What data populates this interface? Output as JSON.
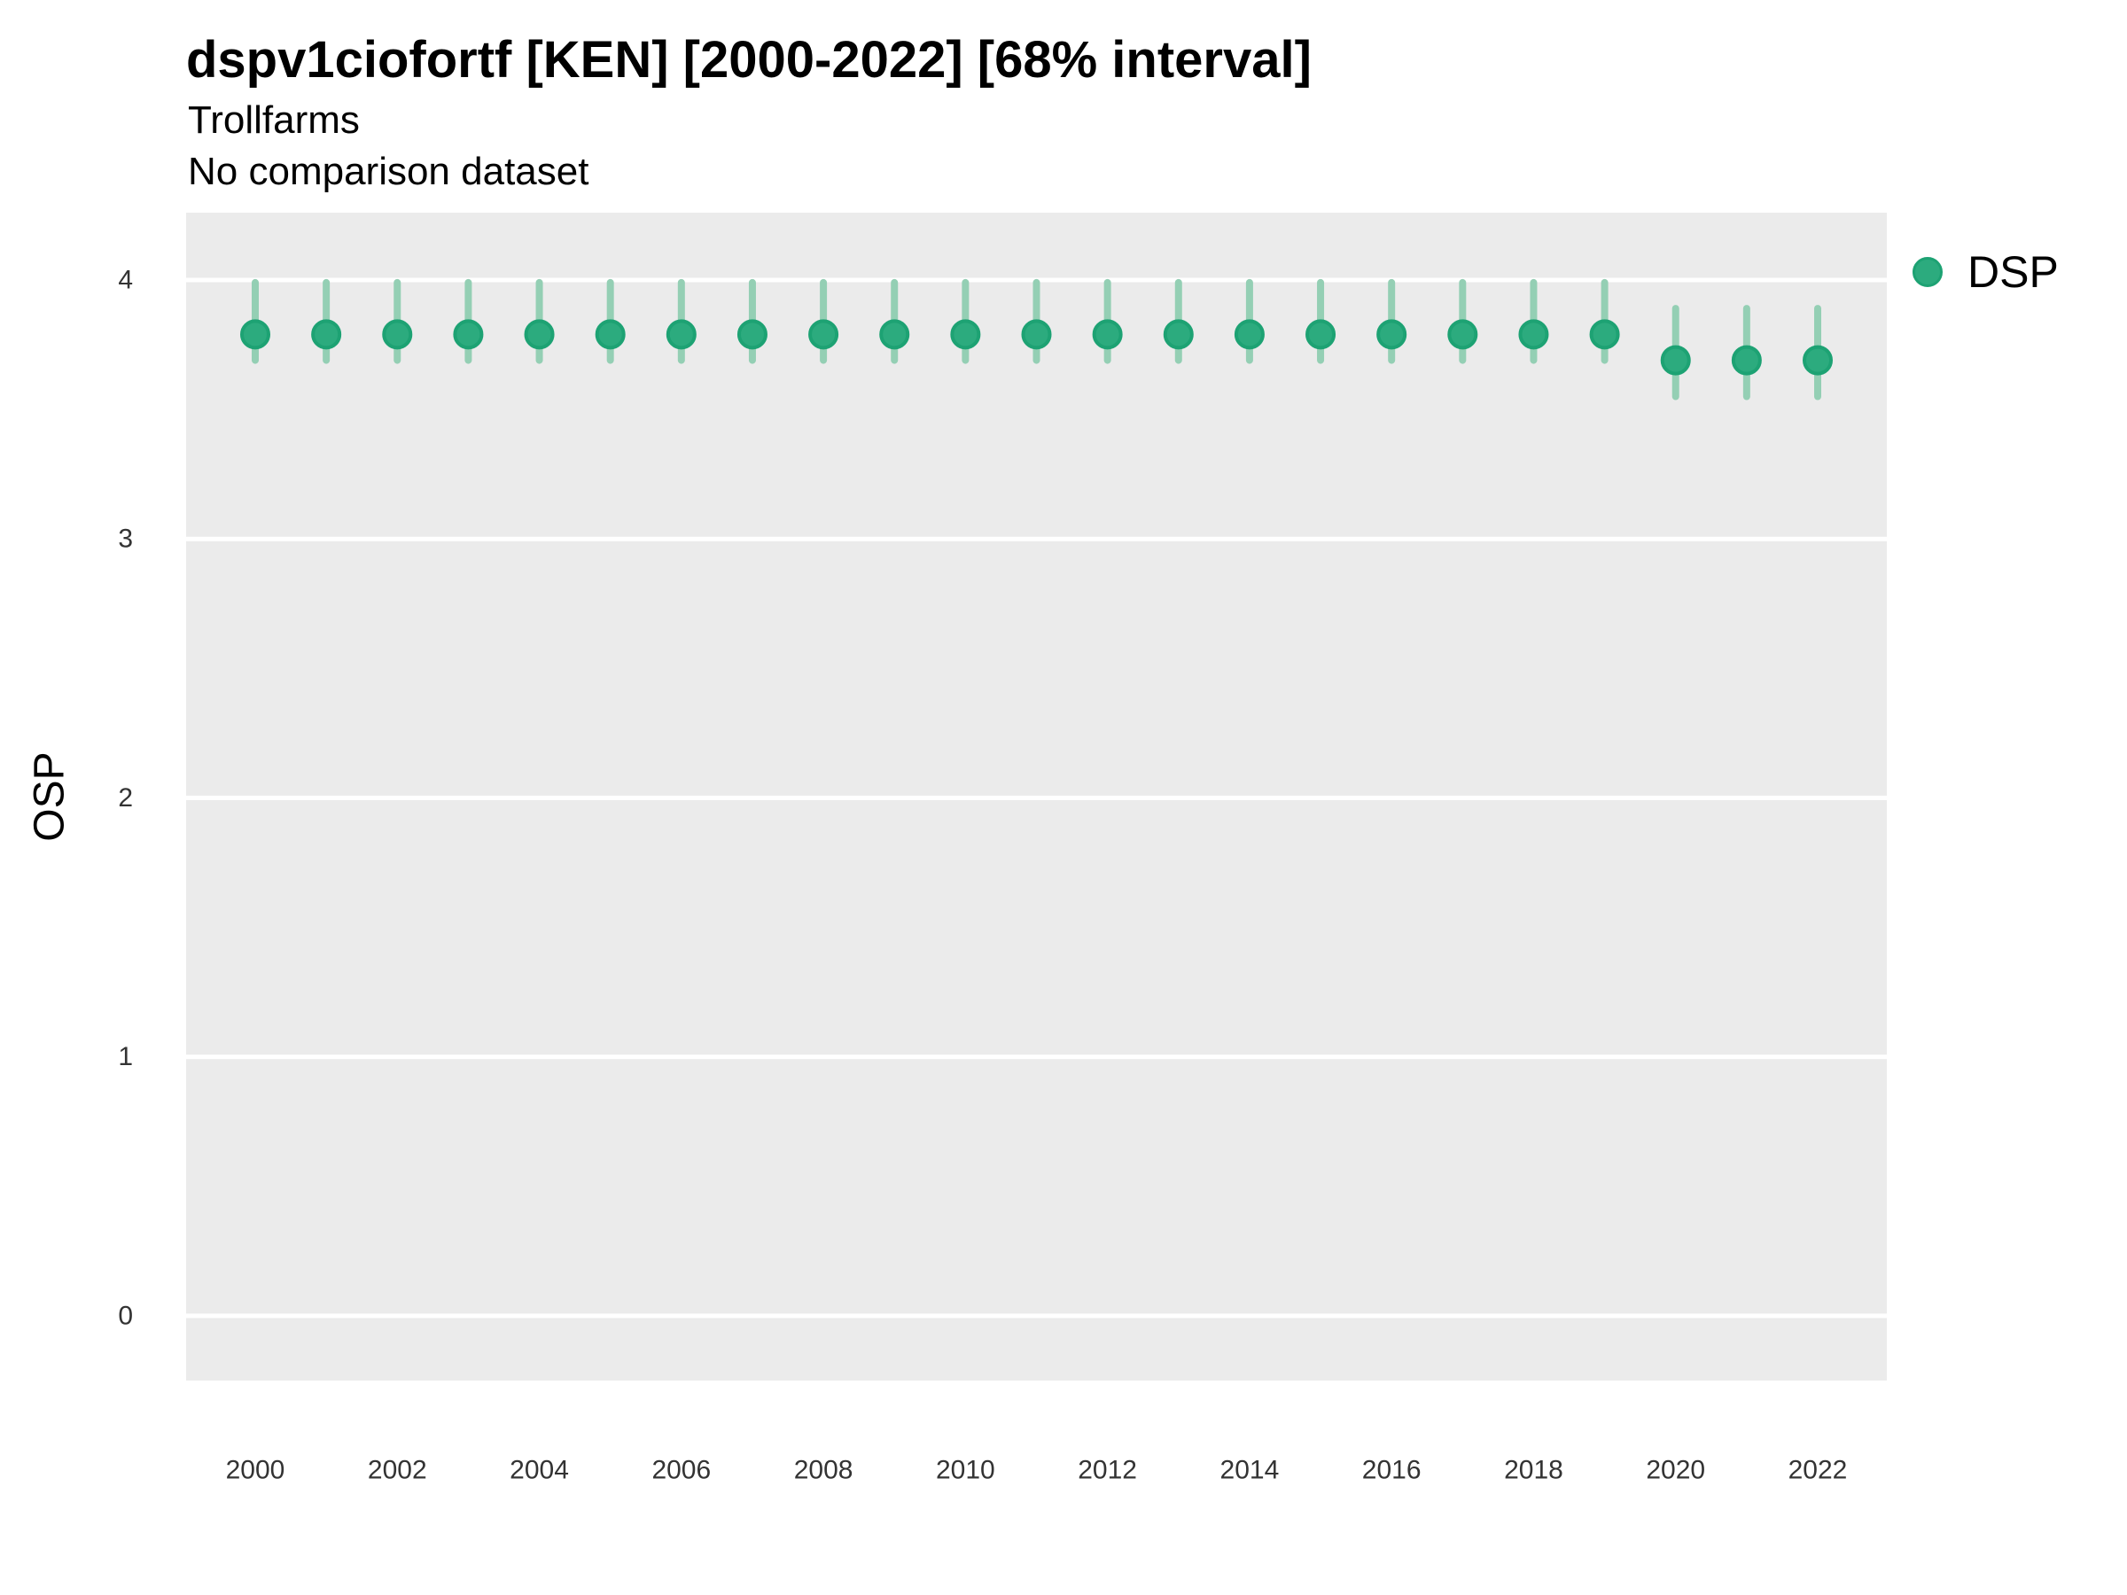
{
  "title": "dspv1ciofortf [KEN] [2000-2022] [68% interval]",
  "subtitle": "Trollfarms",
  "comparison_note": "No comparison dataset",
  "legend": {
    "items": [
      {
        "label": "DSP",
        "symbol": "filled-circle"
      }
    ]
  },
  "axes": {
    "y_label": "OSP",
    "y_ticks": [
      0,
      1,
      2,
      3,
      4
    ],
    "x_ticks": [
      2000,
      2002,
      2004,
      2006,
      2008,
      2010,
      2012,
      2014,
      2016,
      2018,
      2020,
      2022
    ]
  },
  "colors": {
    "point_fill": "#2cab7e",
    "point_ring": "#1da273",
    "interval_bar": "#94cfb4",
    "panel_bg": "#ebebeb",
    "gridline": "#ffffff",
    "tick_text": "#333333",
    "axis_title_text": "#000000"
  },
  "chart_data": {
    "type": "scatter",
    "subtype": "pointrange",
    "title": "dspv1ciofortf [KEN] [2000-2022] [68% interval]",
    "subtitle": "Trollfarms",
    "note": "No comparison dataset",
    "interval": "68%",
    "xlabel": "",
    "ylabel": "OSP",
    "ylim": [
      -0.25,
      4.26
    ],
    "grid": "horizontal-only",
    "legend_position": "right-top",
    "x": [
      2000,
      2001,
      2002,
      2003,
      2004,
      2005,
      2006,
      2007,
      2008,
      2009,
      2010,
      2011,
      2012,
      2013,
      2014,
      2015,
      2016,
      2017,
      2018,
      2019,
      2020,
      2021,
      2022
    ],
    "series": [
      {
        "name": "DSP",
        "values": [
          3.79,
          3.79,
          3.79,
          3.79,
          3.79,
          3.79,
          3.79,
          3.79,
          3.79,
          3.79,
          3.79,
          3.79,
          3.79,
          3.79,
          3.79,
          3.79,
          3.79,
          3.79,
          3.79,
          3.79,
          3.69,
          3.69,
          3.69
        ],
        "lower": [
          3.69,
          3.69,
          3.69,
          3.69,
          3.69,
          3.69,
          3.69,
          3.69,
          3.69,
          3.69,
          3.69,
          3.69,
          3.69,
          3.69,
          3.69,
          3.69,
          3.69,
          3.69,
          3.69,
          3.69,
          3.55,
          3.55,
          3.55
        ],
        "upper": [
          3.99,
          3.99,
          3.99,
          3.99,
          3.99,
          3.99,
          3.99,
          3.99,
          3.99,
          3.99,
          3.99,
          3.99,
          3.99,
          3.99,
          3.99,
          3.99,
          3.99,
          3.99,
          3.99,
          3.99,
          3.89,
          3.89,
          3.89
        ]
      }
    ]
  }
}
